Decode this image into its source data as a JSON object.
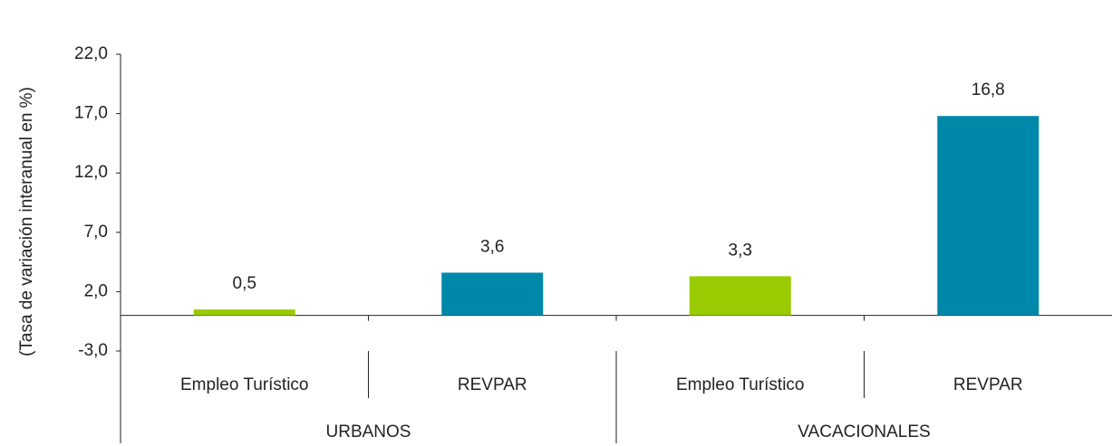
{
  "chart_data": {
    "type": "bar",
    "y_axis_label": "(Tasa de variación interanual en %)",
    "categories": [
      "Empleo Turístico",
      "REVPAR",
      "Empleo Turístico",
      "REVPAR"
    ],
    "groups": [
      "URBANOS",
      "VACACIONALES"
    ],
    "values": [
      0.5,
      3.6,
      3.3,
      16.8
    ],
    "value_labels": [
      "0,5",
      "3,6",
      "3,3",
      "16,8"
    ],
    "colors": [
      "#99cc00",
      "#0088aa",
      "#99cc00",
      "#0088aa"
    ],
    "ylim": [
      -3,
      22
    ],
    "yticks": [
      {
        "value": -3,
        "label": "-3,0"
      },
      {
        "value": 2,
        "label": "2,0"
      },
      {
        "value": 7,
        "label": "7,0"
      },
      {
        "value": 12,
        "label": "12,0"
      },
      {
        "value": 17,
        "label": "17,0"
      },
      {
        "value": 22,
        "label": "22,0"
      }
    ],
    "grid": false
  }
}
